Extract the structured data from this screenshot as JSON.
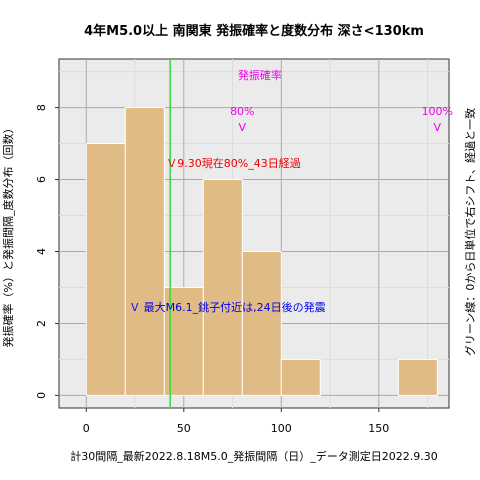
{
  "chart_data": {
    "type": "bar",
    "title": "4年M5.0以上 南関東 発振確率と度数分布 深さ<130km",
    "xlabel": "計30間隔_最新2022.8.18M5.0_発振間隔（日）_データ測定日2022.9.30",
    "ylabel": "発振確率（%）と発振間隔_度数分布（回数）",
    "right_label": "グリーン線：0から日単位で右シフト、経過と一致",
    "xlim": [
      -14,
      186
    ],
    "ylim": [
      -0.35,
      9.35
    ],
    "xticks": [
      0,
      50,
      100,
      150
    ],
    "yticks": [
      0,
      2,
      4,
      6,
      8
    ],
    "bins": [
      {
        "x0": 0,
        "x1": 20,
        "count": 7
      },
      {
        "x0": 20,
        "x1": 40,
        "count": 8
      },
      {
        "x0": 40,
        "x1": 60,
        "count": 3
      },
      {
        "x0": 60,
        "x1": 80,
        "count": 6
      },
      {
        "x0": 80,
        "x1": 100,
        "count": 4
      },
      {
        "x0": 100,
        "x1": 120,
        "count": 1
      },
      {
        "x0": 160,
        "x1": 180,
        "count": 1
      }
    ],
    "current_elapsed_days": 43,
    "colors": {
      "bar": "#e0bb85",
      "bar_edge": "#ffffff",
      "grid_light": "#dddddd",
      "grid_dark": "#aaaaaa",
      "green": "#33dd33",
      "magenta": "#ee00ee",
      "red": "#ee0000",
      "blue": "#0000ee",
      "plot_bg": "#ebebeb"
    },
    "annotations": {
      "prob_title": {
        "text": "発振確率",
        "x": 89,
        "y": 8.8
      },
      "p80": {
        "label": "80%",
        "marker": "V",
        "x": 80
      },
      "p100": {
        "label": "100%",
        "marker": "V",
        "x": 180
      },
      "prob_label_y": 7.8,
      "prob_marker_y": 7.35,
      "now_label": {
        "text": "Ｖ9.30現在80%_43日経過",
        "x": 41,
        "y": 6.35
      },
      "max_label": {
        "text": "Ｖ 最大M6.1_銚子付近は,24日後の発震",
        "x": 22,
        "y": 2.35
      }
    }
  }
}
